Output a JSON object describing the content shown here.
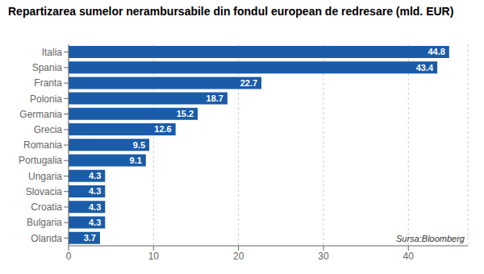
{
  "chart_data": {
    "type": "bar",
    "orientation": "horizontal",
    "title": "Repartizarea sumelor nerambursabile din fondul european de redresare (mld. EUR)",
    "categories": [
      "Italia",
      "Spania",
      "Franta",
      "Polonia",
      "Germania",
      "Grecia",
      "Romania",
      "Portugalia",
      "Ungaria",
      "Slovacia",
      "Croatia",
      "Bulgaria",
      "Olanda"
    ],
    "values": [
      44.8,
      43.4,
      22.7,
      18.7,
      15.2,
      12.6,
      9.5,
      9.1,
      4.3,
      4.3,
      4.3,
      4.3,
      3.7
    ],
    "color": "#1a5ca8",
    "xlim": [
      0,
      47
    ],
    "xticks": [
      0,
      10,
      20,
      30,
      40
    ],
    "grid": true,
    "data_labels": true,
    "annotation": "Sursa:Bloomberg"
  }
}
